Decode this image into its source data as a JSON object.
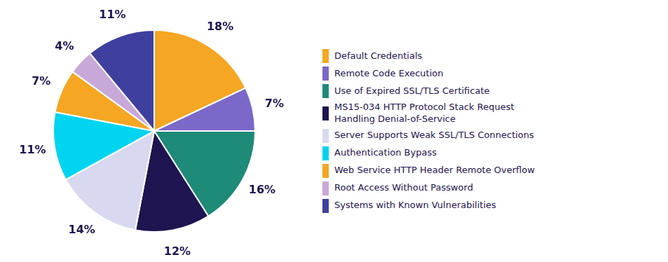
{
  "chart_data": {
    "type": "pie",
    "categories": [
      "Default Credentials",
      "Remote Code Execution",
      "Use of Expired SSL/TLS Certificate",
      "MS15-034 HTTP Protocol Stack Request\nHandling Denial-of-Service",
      "Server Supports Weak SSL/TLS Connections",
      "Authentication Bypass",
      "Web Service HTTP Header Remote Overflow",
      "Root Access Without Password",
      "Systems with Known Vulnerabilities"
    ],
    "values": [
      18,
      7,
      16,
      12,
      14,
      11,
      7,
      4,
      11
    ],
    "value_labels": [
      "18%",
      "7%",
      "16%",
      "12%",
      "14%",
      "11%",
      "7%",
      "4%",
      "11%"
    ],
    "colors": [
      "#F5A623",
      "#7B68C8",
      "#1E8A78",
      "#1E1450",
      "#D8D8F0",
      "#00D4F0",
      "#F5A623",
      "#C8A8D8",
      "#3F3FA0"
    ],
    "data_labels": true,
    "legend": "right"
  }
}
